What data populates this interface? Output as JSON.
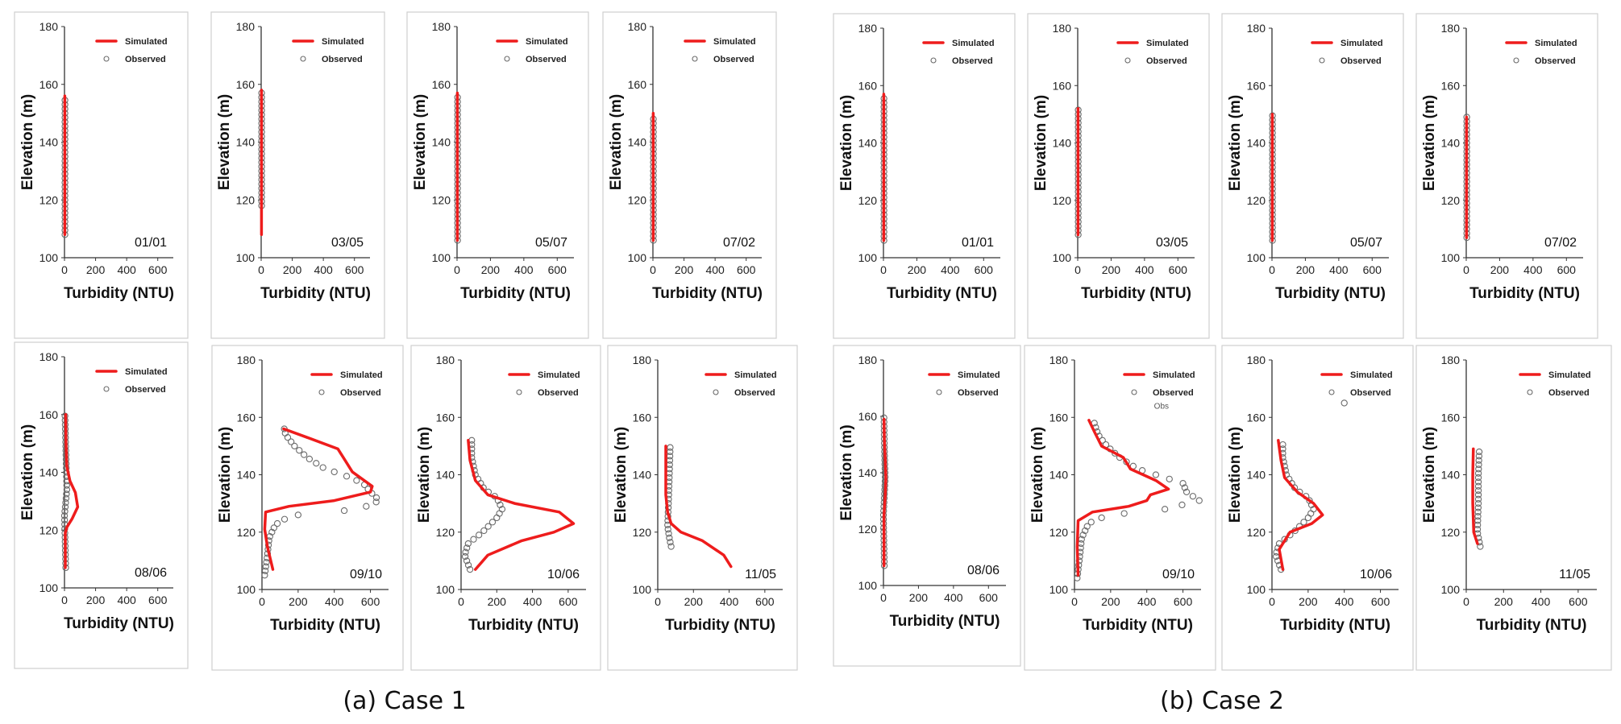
{
  "groups": [
    {
      "caption": "(a) Case 1"
    },
    {
      "caption": "(b) Case 2"
    }
  ],
  "axis_common": {
    "xlabel": "Turbidity (NTU)",
    "ylabel": "Elevation (m)",
    "xlim": [
      0,
      700
    ],
    "ylim": [
      100,
      180
    ],
    "xticks": [
      0,
      200,
      400,
      600
    ],
    "yticks": [
      100,
      120,
      140,
      160,
      180
    ],
    "legend": [
      "Simulated",
      "Observed"
    ],
    "legend_position": "top-right",
    "date_position": "bottom-right"
  },
  "colors": {
    "simulated": "#ee1c1c",
    "observed": "#6a6a6a"
  },
  "chart_data": [
    {
      "group": 0,
      "date": "01/01",
      "type": "line",
      "series": [
        {
          "name": "Simulated",
          "points": [
            [
              2,
              108
            ],
            [
              2,
              156
            ]
          ]
        },
        {
          "name": "Observed",
          "obs": {
            "y0": 108,
            "y1": 155,
            "step": 1.5,
            "xs": [
              [
                0,
                3
              ]
            ]
          }
        }
      ]
    },
    {
      "group": 0,
      "date": "03/05",
      "type": "line",
      "series": [
        {
          "name": "Simulated",
          "points": [
            [
              2,
              108
            ],
            [
              2,
              158
            ]
          ]
        },
        {
          "name": "Observed",
          "obs": {
            "y0": 118,
            "y1": 158,
            "step": 1.5,
            "xs": [
              [
                0,
                3
              ]
            ]
          }
        }
      ]
    },
    {
      "group": 0,
      "date": "05/07",
      "type": "line",
      "series": [
        {
          "name": "Simulated",
          "points": [
            [
              2,
              106
            ],
            [
              2,
              157
            ]
          ]
        },
        {
          "name": "Observed",
          "obs": {
            "y0": 106,
            "y1": 156,
            "step": 1.5,
            "xs": [
              [
                0,
                3
              ]
            ]
          }
        }
      ]
    },
    {
      "group": 0,
      "date": "07/02",
      "type": "line",
      "series": [
        {
          "name": "Simulated",
          "points": [
            [
              2,
              106
            ],
            [
              2,
              150
            ]
          ]
        },
        {
          "name": "Observed",
          "obs": {
            "y0": 106,
            "y1": 149,
            "step": 1.5,
            "xs": [
              [
                0,
                3
              ]
            ]
          }
        }
      ]
    },
    {
      "group": 0,
      "date": "08/06",
      "type": "line",
      "series": [
        {
          "name": "Simulated",
          "points": [
            [
              5,
              107
            ],
            [
              5,
              119
            ],
            [
              15,
              121
            ],
            [
              50,
              124
            ],
            [
              85,
              128
            ],
            [
              70,
              133
            ],
            [
              35,
              137
            ],
            [
              15,
              142
            ],
            [
              10,
              150
            ],
            [
              8,
              160
            ]
          ]
        },
        {
          "name": "Observed",
          "obs": {
            "y0": 107,
            "y1": 160,
            "step": 1.5,
            "xs": [
              [
                107,
                8
              ],
              [
                125,
                0
              ],
              [
                134,
                15
              ],
              [
                145,
                10
              ],
              [
                160,
                3
              ]
            ]
          }
        }
      ]
    },
    {
      "group": 1,
      "date": "01/01",
      "type": "line",
      "series": [
        {
          "name": "Simulated",
          "points": [
            [
              2,
              106
            ],
            [
              2,
              157
            ]
          ]
        },
        {
          "name": "Observed",
          "obs": {
            "y0": 106,
            "y1": 156,
            "step": 1.5,
            "xs": [
              [
                0,
                3
              ]
            ]
          }
        }
      ]
    },
    {
      "group": 1,
      "date": "03/05",
      "type": "line",
      "series": [
        {
          "name": "Simulated",
          "points": [
            [
              2,
              108
            ],
            [
              2,
              152
            ]
          ]
        },
        {
          "name": "Observed",
          "obs": {
            "y0": 108,
            "y1": 152,
            "step": 1.5,
            "xs": [
              [
                0,
                3
              ]
            ]
          }
        }
      ]
    },
    {
      "group": 1,
      "date": "05/07",
      "type": "line",
      "series": [
        {
          "name": "Simulated",
          "points": [
            [
              2,
              106
            ],
            [
              2,
              150
            ]
          ]
        },
        {
          "name": "Observed",
          "obs": {
            "y0": 106,
            "y1": 150,
            "step": 1.5,
            "xs": [
              [
                0,
                3
              ]
            ]
          }
        }
      ]
    },
    {
      "group": 1,
      "date": "07/02",
      "type": "line",
      "series": [
        {
          "name": "Simulated",
          "points": [
            [
              2,
              107
            ],
            [
              2,
              149
            ]
          ]
        },
        {
          "name": "Observed",
          "obs": {
            "y0": 107,
            "y1": 149,
            "step": 1.5,
            "xs": [
              [
                0,
                3
              ]
            ]
          }
        }
      ]
    },
    {
      "group": 1,
      "date": "08/06",
      "type": "line",
      "series": [
        {
          "name": "Simulated",
          "points": [
            [
              3,
              107
            ],
            [
              3,
              125
            ],
            [
              10,
              132
            ],
            [
              14,
              138
            ],
            [
              10,
              145
            ],
            [
              5,
              152
            ],
            [
              3,
              159
            ]
          ]
        },
        {
          "name": "Observed",
          "obs": {
            "y0": 107,
            "y1": 160,
            "step": 1.5,
            "xs": [
              [
                107,
                5
              ],
              [
                125,
                0
              ],
              [
                138,
                10
              ],
              [
                150,
                5
              ],
              [
                160,
                3
              ]
            ]
          }
        }
      ]
    },
    {
      "group": 0,
      "date": "09/10",
      "type": "line",
      "series": [
        {
          "name": "Simulated",
          "points": [
            [
              60,
              107
            ],
            [
              30,
              115
            ],
            [
              15,
              121
            ],
            [
              20,
              127
            ],
            [
              150,
              129
            ],
            [
              400,
              131
            ],
            [
              600,
              134
            ],
            [
              610,
              136
            ],
            [
              500,
              141
            ],
            [
              450,
              146
            ],
            [
              420,
              149
            ],
            [
              250,
              153
            ],
            [
              120,
              156
            ]
          ]
        },
        {
          "name": "Observed",
          "obs": {
            "y0": 105,
            "y1": 157,
            "step": 1.5,
            "xs": [
              [
                105,
                15
              ],
              [
                112,
                30
              ],
              [
                118,
                40
              ],
              [
                122,
                70
              ],
              [
                124,
                100
              ],
              [
                126,
                200
              ],
              [
                128,
                540
              ],
              [
                131,
                650
              ],
              [
                134,
                600
              ],
              [
                137,
                560
              ],
              [
                140,
                450
              ],
              [
                142,
                350
              ],
              [
                146,
                250
              ],
              [
                150,
                180
              ],
              [
                154,
                130
              ],
              [
                157,
                120
              ]
            ]
          }
        }
      ]
    },
    {
      "group": 0,
      "date": "10/06",
      "type": "line",
      "series": [
        {
          "name": "Simulated",
          "points": [
            [
              80,
              107
            ],
            [
              150,
              112
            ],
            [
              340,
              117
            ],
            [
              520,
              120
            ],
            [
              630,
              123
            ],
            [
              550,
              127
            ],
            [
              300,
              130
            ],
            [
              150,
              133
            ],
            [
              80,
              138
            ],
            [
              50,
              145
            ],
            [
              40,
              152
            ]
          ]
        },
        {
          "name": "Observed",
          "obs": {
            "y0": 107,
            "y1": 152,
            "step": 1.5,
            "xs": [
              [
                107,
                50
              ],
              [
                112,
                20
              ],
              [
                116,
                40
              ],
              [
                120,
                120
              ],
              [
                125,
                200
              ],
              [
                128,
                230
              ],
              [
                132,
                200
              ],
              [
                135,
                130
              ],
              [
                140,
                80
              ],
              [
                146,
                60
              ],
              [
                152,
                60
              ]
            ]
          }
        }
      ]
    },
    {
      "group": 0,
      "date": "11/05",
      "type": "line",
      "series": [
        {
          "name": "Simulated",
          "points": [
            [
              410,
              108
            ],
            [
              370,
              112
            ],
            [
              250,
              117
            ],
            [
              130,
              120
            ],
            [
              75,
              123
            ],
            [
              55,
              127
            ],
            [
              45,
              133
            ],
            [
              45,
              140
            ],
            [
              45,
              150
            ]
          ]
        },
        {
          "name": "Observed",
          "obs": {
            "y0": 115,
            "y1": 150,
            "step": 1.5,
            "xs": [
              [
                115,
                75
              ],
              [
                118,
                65
              ],
              [
                122,
                55
              ],
              [
                130,
                60
              ],
              [
                140,
                65
              ],
              [
                150,
                70
              ]
            ]
          }
        }
      ]
    },
    {
      "group": 1,
      "date": "09/10",
      "type": "line",
      "series": [
        {
          "name": "Simulated",
          "points": [
            [
              20,
              105
            ],
            [
              15,
              115
            ],
            [
              20,
              124
            ],
            [
              100,
              127
            ],
            [
              300,
              129
            ],
            [
              400,
              131
            ],
            [
              420,
              133
            ],
            [
              520,
              135
            ],
            [
              450,
              138
            ],
            [
              310,
              142
            ],
            [
              270,
              146
            ],
            [
              210,
              148
            ],
            [
              150,
              150
            ],
            [
              110,
              155
            ],
            [
              80,
              159
            ]
          ]
        },
        {
          "name": "Observed",
          "obs": {
            "y0": 104,
            "y1": 158,
            "step": 1.5,
            "xs": [
              [
                104,
                15
              ],
              [
                112,
                30
              ],
              [
                118,
                40
              ],
              [
                122,
                70
              ],
              [
                124,
                100
              ],
              [
                126,
                200
              ],
              [
                128,
                500
              ],
              [
                131,
                690
              ],
              [
                134,
                620
              ],
              [
                137,
                600
              ],
              [
                140,
                450
              ],
              [
                142,
                350
              ],
              [
                146,
                250
              ],
              [
                150,
                180
              ],
              [
                154,
                130
              ],
              [
                158,
                110
              ]
            ]
          }
        }
      ]
    },
    {
      "group": 1,
      "date": "10/06",
      "type": "line",
      "series": [
        {
          "name": "Simulated",
          "points": [
            [
              60,
              107
            ],
            [
              40,
              114
            ],
            [
              100,
              120
            ],
            [
              220,
              123
            ],
            [
              280,
              126
            ],
            [
              230,
              130
            ],
            [
              140,
              134
            ],
            [
              70,
              139
            ],
            [
              50,
              145
            ],
            [
              35,
              152
            ]
          ]
        },
        {
          "name": "Observed",
          "obs": {
            "y0": 107,
            "y1": 151,
            "step": 1.5,
            "xs": [
              [
                107,
                50
              ],
              [
                112,
                20
              ],
              [
                116,
                40
              ],
              [
                120,
                120
              ],
              [
                125,
                200
              ],
              [
                128,
                230
              ],
              [
                132,
                200
              ],
              [
                135,
                130
              ],
              [
                140,
                80
              ],
              [
                146,
                60
              ],
              [
                151,
                60
              ]
            ]
          }
        }
      ]
    },
    {
      "group": 1,
      "date": "11/05",
      "type": "line",
      "series": [
        {
          "name": "Simulated",
          "points": [
            [
              60,
              116
            ],
            [
              40,
              120
            ],
            [
              35,
              130
            ],
            [
              35,
              140
            ],
            [
              38,
              149
            ]
          ]
        },
        {
          "name": "Observed",
          "obs": {
            "y0": 115,
            "y1": 149,
            "step": 1.5,
            "xs": [
              [
                115,
                75
              ],
              [
                120,
                60
              ],
              [
                130,
                65
              ],
              [
                140,
                65
              ],
              [
                149,
                70
              ]
            ]
          }
        }
      ]
    }
  ],
  "annotations": [
    {
      "chart_index": 13,
      "text": "Obs",
      "x": 440,
      "y": 163
    },
    {
      "chart_index": 14,
      "observed_extra": [
        400,
        165
      ]
    }
  ]
}
